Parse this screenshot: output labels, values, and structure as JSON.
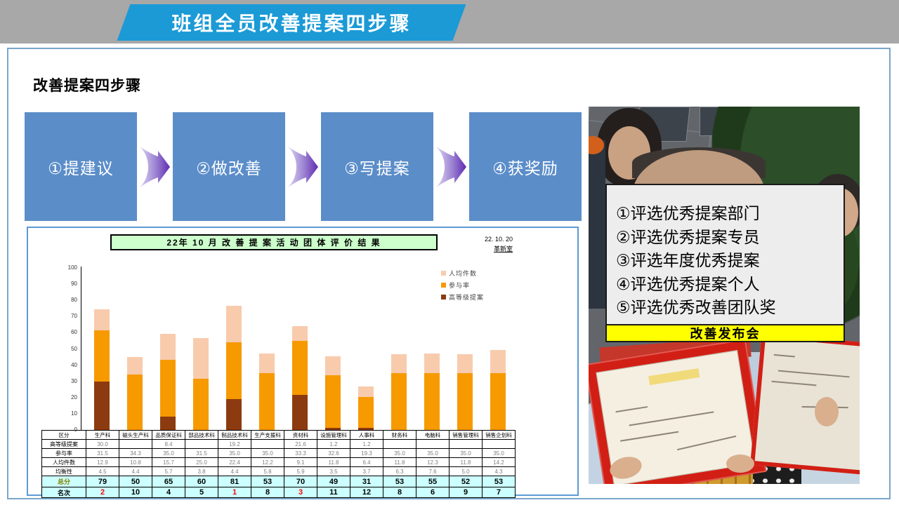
{
  "header": {
    "title": "班组全员改善提案四步骤"
  },
  "section": {
    "heading": "改善提案四步骤"
  },
  "steps": {
    "labels": [
      "①提建议",
      "②做改善",
      "③写提案",
      "④获奖励"
    ]
  },
  "report": {
    "title": "22年 10 月 改 善 提 案 活 动 团 体 评 价 结 果",
    "date": "22. 10. 20",
    "dept": "革新室"
  },
  "chart_data": {
    "type": "bar",
    "stacked": true,
    "title": "22年 10 月 改 善 提 案 活 动 团 体 评 价 结 果",
    "categories": [
      "生产科",
      "磁头生产科",
      "品质保证科",
      "部品技术科",
      "制品技术科",
      "生产支援科",
      "资材科",
      "设施管理科",
      "人事科",
      "财务科",
      "电脑科",
      "销售管理科",
      "销售企划科"
    ],
    "series": [
      {
        "name": "高等级提案",
        "color": "#8c3b10",
        "values": [
          30.0,
          0,
          8.4,
          0,
          19.2,
          0,
          21.6,
          1.2,
          1.2,
          0,
          0,
          0,
          0
        ]
      },
      {
        "name": "参与率",
        "color": "#f79a00",
        "values": [
          31.5,
          34.3,
          35.0,
          31.5,
          35.0,
          35.0,
          33.3,
          32.6,
          19.3,
          35.0,
          35.0,
          35.0,
          35.0
        ]
      },
      {
        "name": "人均件数",
        "color": "#f8cbad",
        "values": [
          12.9,
          10.8,
          15.7,
          25.0,
          22.4,
          12.2,
          9.1,
          11.8,
          6.4,
          11.8,
          12.3,
          11.8,
          14.2
        ]
      }
    ],
    "legend": [
      "人均件数",
      "参与率",
      "高等级提案"
    ],
    "legend_position": "upper-right",
    "ylim": [
      0,
      100
    ],
    "ytick_step": 10,
    "grid": false
  },
  "table": {
    "corner": "区分",
    "columns": [
      "生产科",
      "磁头生产科",
      "品质保证科",
      "部品技术科",
      "制品技术科",
      "生产支援科",
      "资材科",
      "设施管理科",
      "人事科",
      "财务科",
      "电脑科",
      "销售管理科",
      "销售企划科"
    ],
    "rows": [
      {
        "label": "高等级提案",
        "kind": "data",
        "cells": [
          "30.0",
          "",
          "8.4",
          "",
          "19.2",
          "",
          "21.6",
          "1.2",
          "1.2",
          "",
          "",
          "",
          ""
        ]
      },
      {
        "label": "参与率",
        "kind": "data",
        "cells": [
          "31.5",
          "34.3",
          "35.0",
          "31.5",
          "35.0",
          "35.0",
          "33.3",
          "32.6",
          "19.3",
          "35.0",
          "35.0",
          "35.0",
          "35.0"
        ]
      },
      {
        "label": "人均件数",
        "kind": "data",
        "cells": [
          "12.9",
          "10.8",
          "15.7",
          "25.0",
          "22.4",
          "12.2",
          "9.1",
          "11.8",
          "6.4",
          "11.8",
          "12.3",
          "11.8",
          "14.2"
        ]
      },
      {
        "label": "均衡性",
        "kind": "data",
        "cells": [
          "4.5",
          "4.4",
          "5.7",
          "3.8",
          "4.4",
          "5.8",
          "5.9",
          "3.5",
          "3.7",
          "6.3",
          "7.6",
          "5.0",
          "4.3"
        ]
      },
      {
        "label": "总分",
        "kind": "score",
        "cells": [
          "79",
          "50",
          "65",
          "60",
          "81",
          "53",
          "70",
          "49",
          "31",
          "53",
          "55",
          "52",
          "53"
        ]
      },
      {
        "label": "名次",
        "kind": "rank",
        "cells": [
          "2",
          "10",
          "4",
          "5",
          "1",
          "8",
          "3",
          "11",
          "12",
          "8",
          "6",
          "9",
          "7"
        ],
        "red_cells": [
          0,
          4,
          6
        ]
      }
    ]
  },
  "awards": {
    "lines": [
      "①评选优秀提案部门",
      "②评选优秀提案专员",
      "③评选年度优秀提案",
      "④评选优秀提案个人",
      "⑤评选优秀改善团队奖"
    ]
  },
  "photo": {
    "caption": "改善发布会"
  },
  "colors": {
    "banner_blue": "#1b9ad6",
    "step_box_blue": "#5b8dc9",
    "arrow_purple": "#7030a0",
    "panel_border": "#5b9bd5",
    "frame_border": "#79a7cb",
    "table_highlight": "#ccffff",
    "caption_yellow": "#ffff00",
    "title_green": "#ccffcc",
    "rank_red": "#ff0000",
    "series_high_grade": "#8c3b10",
    "series_participation": "#f79a00",
    "series_per_capita": "#f8cbad"
  }
}
